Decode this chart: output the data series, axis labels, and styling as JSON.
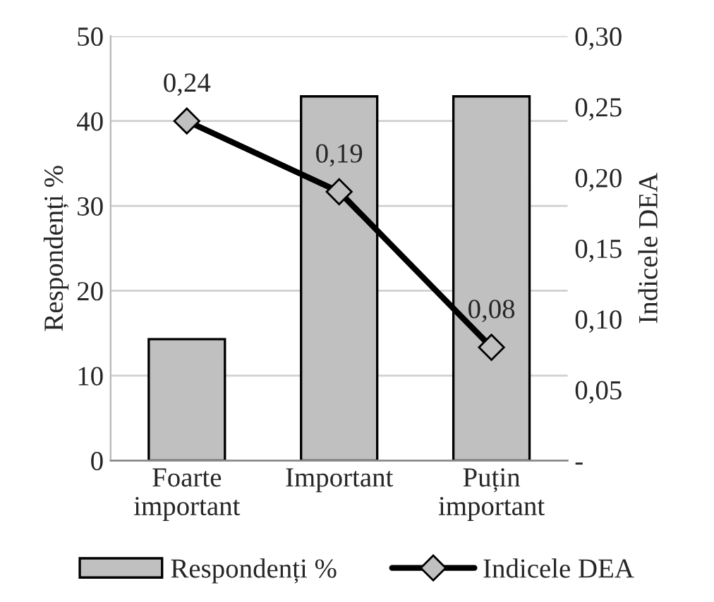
{
  "chart_data": {
    "type": "bar",
    "categories": [
      "Foarte\nimportant",
      "Important",
      "Puțin\nimportant"
    ],
    "ylabel": "Respondenți %",
    "y2label": "Indicele DEA",
    "series": [
      {
        "name": "Respondenți %",
        "color": "#c0c0c0",
        "values": [
          14.3,
          42.9,
          42.9
        ]
      },
      {
        "name": "Indicele DEA",
        "type": "line",
        "axis": "y2",
        "color": "#000000",
        "marker": "diamond",
        "values": [
          0.24,
          0.19,
          0.08
        ],
        "value_labels": [
          "0,24",
          "0,19",
          "0,08"
        ]
      }
    ],
    "ylim": [
      0,
      50
    ],
    "yticks": [
      0,
      10,
      20,
      30,
      40,
      50
    ],
    "y2lim": [
      0,
      0.3
    ],
    "y2ticks": [
      {
        "value": 0,
        "label": "-"
      },
      {
        "value": 0.05,
        "label": "0,05"
      },
      {
        "value": 0.1,
        "label": "0,10"
      },
      {
        "value": 0.15,
        "label": "0,15"
      },
      {
        "value": 0.2,
        "label": "0,20"
      },
      {
        "value": 0.25,
        "label": "0,25"
      },
      {
        "value": 0.3,
        "label": "0,30"
      }
    ],
    "grid": "y",
    "legend": "bottom"
  }
}
